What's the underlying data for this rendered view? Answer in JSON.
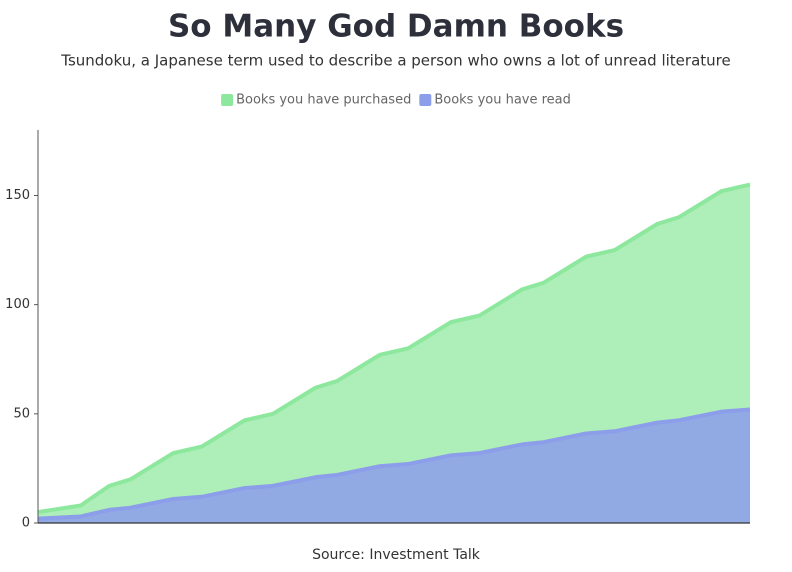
{
  "chart_data": {
    "type": "area",
    "title": "So Many God Damn Books",
    "subtitle": "Tsundoku, a Japanese term used to describe a person who owns a lot of unread literature",
    "source": "Source: Investment Talk",
    "x": [
      0,
      6,
      10,
      13,
      19,
      23,
      29,
      33,
      39,
      42,
      48,
      52,
      58,
      62,
      68,
      71,
      77,
      81,
      87,
      90,
      96,
      100
    ],
    "xlim": [
      0,
      100
    ],
    "series": [
      {
        "name": "Books you have purchased",
        "color": "#8de89e",
        "values": [
          5,
          8,
          17,
          20,
          32,
          35,
          47,
          50,
          62,
          65,
          77,
          80,
          92,
          95,
          107,
          110,
          122,
          125,
          137,
          140,
          152,
          155
        ]
      },
      {
        "name": "Books you have read",
        "color": "#8c9eea",
        "values": [
          2,
          3,
          6,
          7,
          11,
          12,
          16,
          17,
          21,
          22,
          26,
          27,
          31,
          32,
          36,
          37,
          41,
          42,
          46,
          47,
          51,
          52
        ]
      }
    ],
    "ylim": [
      0,
      180
    ],
    "yticks": [
      0,
      50,
      100,
      150
    ],
    "grid": false,
    "legend": "top"
  }
}
